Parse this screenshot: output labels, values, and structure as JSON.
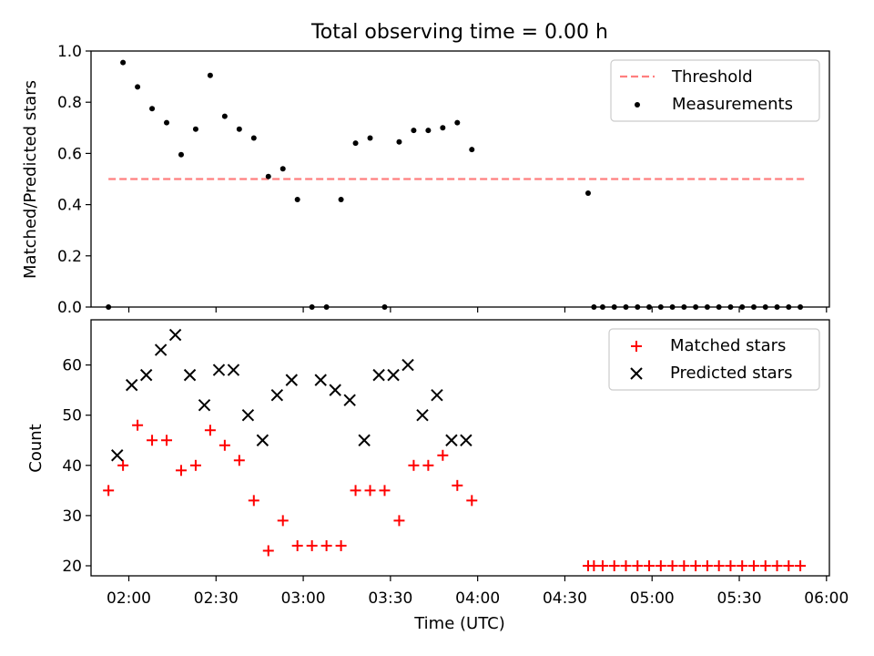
{
  "title": "Total observing time = 0.00 h",
  "colors": {
    "threshold": "#ff7f7f",
    "measurement": "#000000",
    "matched": "#ff0000",
    "predicted": "#000000"
  },
  "chart_data": [
    {
      "type": "scatter",
      "ylabel": "Matched/Predicted stars",
      "ylim": [
        0,
        1.0
      ],
      "yticks": [
        "0.0",
        "0.2",
        "0.4",
        "0.6",
        "0.8",
        "1.0"
      ],
      "legend_position": "top-right",
      "threshold": {
        "name": "Threshold",
        "y": 0.5,
        "x_range": [
          "01:53",
          "05:53"
        ]
      },
      "series": [
        {
          "name": "Measurements",
          "x": [
            "01:53",
            "01:58",
            "02:03",
            "02:08",
            "02:13",
            "02:18",
            "02:23",
            "02:28",
            "02:33",
            "02:38",
            "02:43",
            "02:48",
            "02:53",
            "02:58",
            "03:03",
            "03:08",
            "03:13",
            "03:18",
            "03:23",
            "03:28",
            "03:33",
            "03:38",
            "03:43",
            "03:48",
            "03:53",
            "03:58",
            "04:38",
            "04:40",
            "04:43",
            "04:47",
            "04:51",
            "04:55",
            "04:59",
            "05:03",
            "05:07",
            "05:11",
            "05:15",
            "05:19",
            "05:23",
            "05:27",
            "05:31",
            "05:35",
            "05:39",
            "05:43",
            "05:47",
            "05:51"
          ],
          "y": [
            0.0,
            0.955,
            0.86,
            0.775,
            0.72,
            0.595,
            0.695,
            0.905,
            0.745,
            0.695,
            0.66,
            0.51,
            0.54,
            0.42,
            0.0,
            0.0,
            0.42,
            0.64,
            0.66,
            0.0,
            0.645,
            0.69,
            0.69,
            0.7,
            0.72,
            0.615,
            0.445,
            0.0,
            0.0,
            0.0,
            0.0,
            0.0,
            0.0,
            0.0,
            0.0,
            0.0,
            0.0,
            0.0,
            0.0,
            0.0,
            0.0,
            0.0,
            0.0,
            0.0,
            0.0,
            0.0
          ]
        }
      ]
    },
    {
      "type": "scatter",
      "xlabel": "Time (UTC)",
      "ylabel": "Count",
      "ylim": [
        18,
        69
      ],
      "yticks": [
        "20",
        "30",
        "40",
        "50",
        "60"
      ],
      "xticks": [
        "02:00",
        "02:30",
        "03:00",
        "03:30",
        "04:00",
        "04:30",
        "05:00",
        "05:30",
        "06:00"
      ],
      "xlim": [
        "01:47",
        "06:01"
      ],
      "legend_position": "top-right",
      "series": [
        {
          "name": "Matched stars",
          "x": [
            "01:53",
            "01:58",
            "02:03",
            "02:08",
            "02:13",
            "02:18",
            "02:23",
            "02:28",
            "02:33",
            "02:38",
            "02:43",
            "02:48",
            "02:53",
            "02:58",
            "03:03",
            "03:08",
            "03:13",
            "03:18",
            "03:23",
            "03:28",
            "03:33",
            "03:38",
            "03:43",
            "03:48",
            "03:53",
            "03:58",
            "04:38",
            "04:40",
            "04:43",
            "04:47",
            "04:51",
            "04:55",
            "04:59",
            "05:03",
            "05:07",
            "05:11",
            "05:15",
            "05:19",
            "05:23",
            "05:27",
            "05:31",
            "05:35",
            "05:39",
            "05:43",
            "05:47",
            "05:51"
          ],
          "y": [
            35,
            40,
            48,
            45,
            45,
            39,
            40,
            47,
            44,
            41,
            33,
            23,
            29,
            24,
            24,
            24,
            24,
            35,
            35,
            35,
            29,
            40,
            40,
            42,
            36,
            33,
            20,
            20,
            20,
            20,
            20,
            20,
            20,
            20,
            20,
            20,
            20,
            20,
            20,
            20,
            20,
            20,
            20,
            20,
            20,
            20
          ]
        },
        {
          "name": "Predicted stars",
          "x": [
            "01:56",
            "02:01",
            "02:06",
            "02:11",
            "02:16",
            "02:21",
            "02:26",
            "02:31",
            "02:36",
            "02:41",
            "02:46",
            "02:51",
            "02:56",
            "03:06",
            "03:11",
            "03:16",
            "03:21",
            "03:26",
            "03:31",
            "03:36",
            "03:41",
            "03:46",
            "03:51",
            "03:56"
          ],
          "y": [
            42,
            56,
            58,
            63,
            66,
            58,
            52,
            59,
            59,
            50,
            45,
            54,
            57,
            57,
            55,
            53,
            45,
            58,
            58,
            60,
            50,
            54,
            45,
            45
          ]
        }
      ]
    }
  ]
}
